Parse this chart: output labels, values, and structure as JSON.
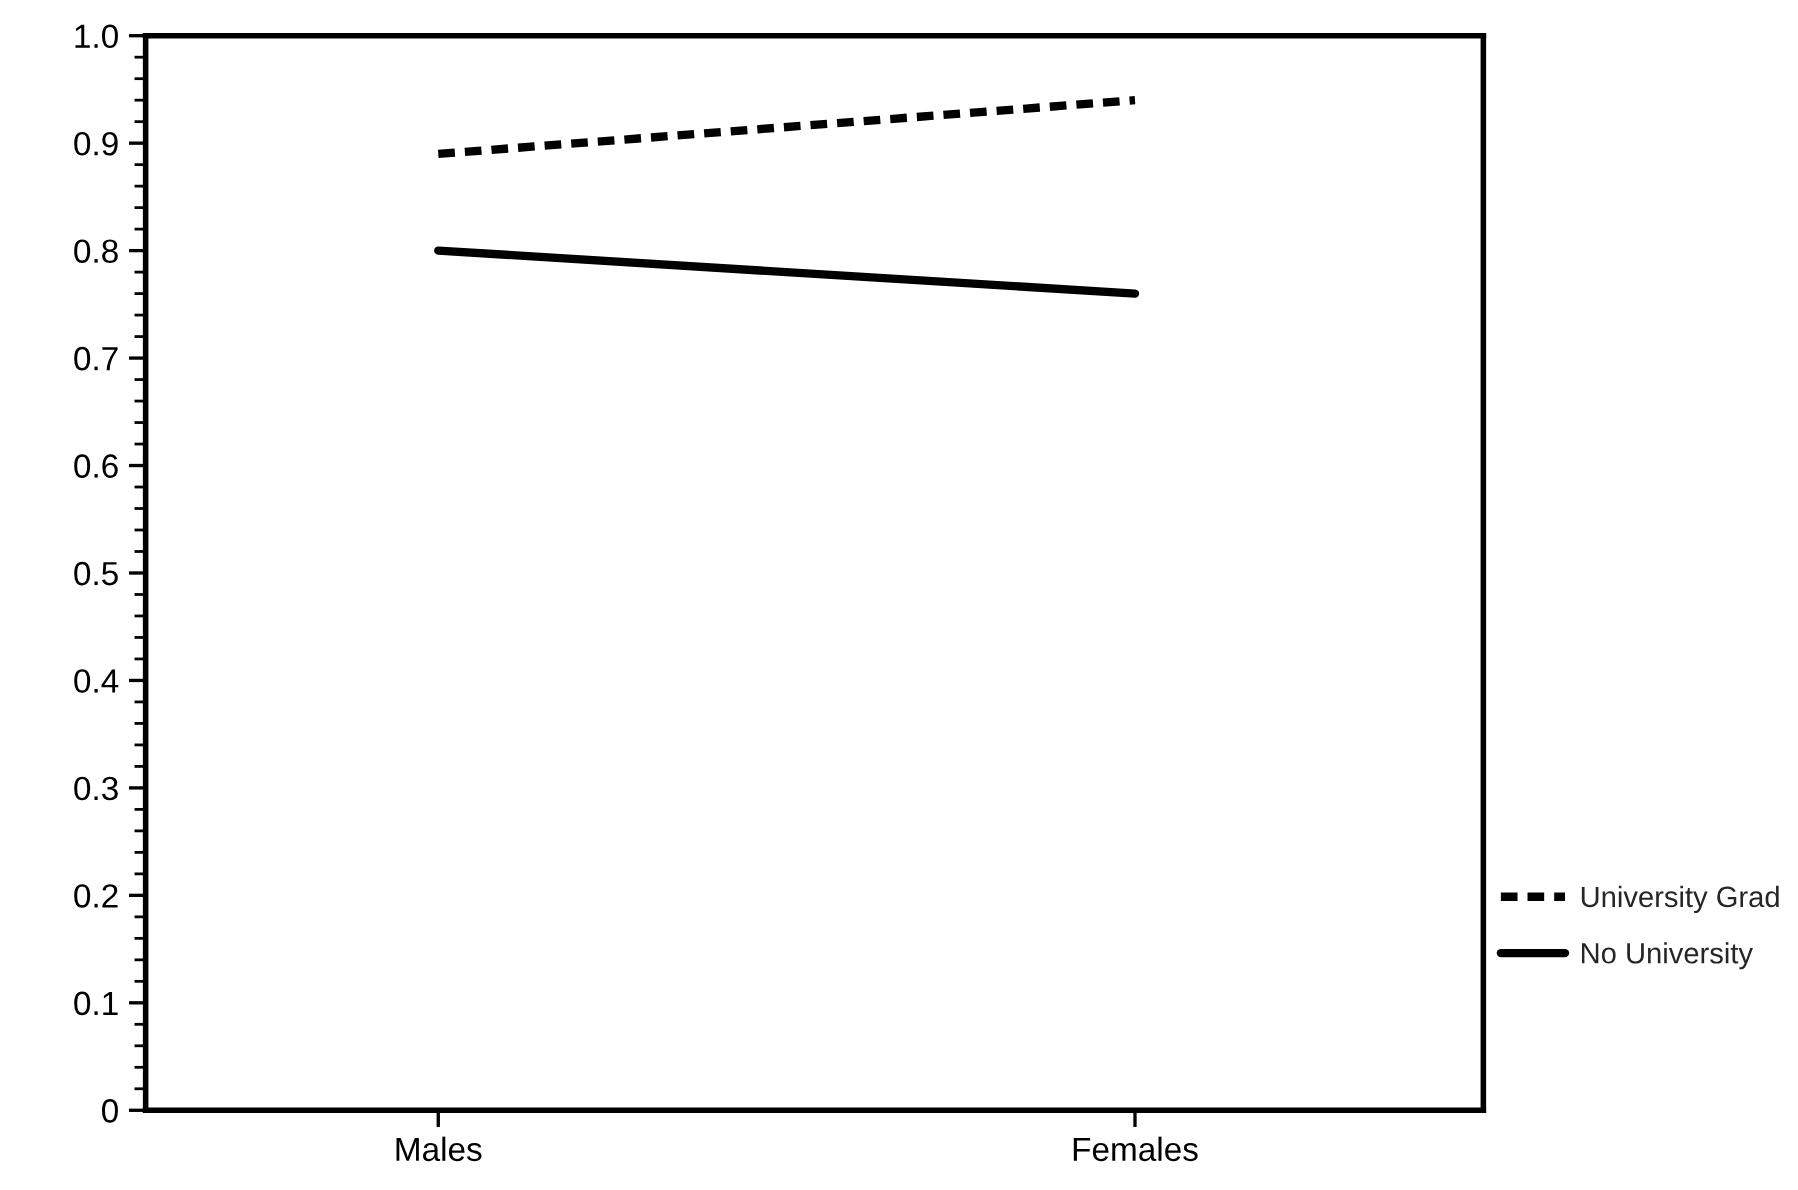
{
  "chart_data": {
    "type": "line",
    "categories": [
      "Males",
      "Females"
    ],
    "series": [
      {
        "name": "University Grad",
        "color": "#000000",
        "values": [
          0.89,
          0.94
        ],
        "line_style": "dashed"
      },
      {
        "name": "No University",
        "color": "#000000",
        "values": [
          0.8,
          0.76
        ],
        "line_style": "solid"
      }
    ],
    "ylim": [
      0,
      1
    ],
    "yticks": [
      0,
      0.1,
      0.2,
      0.3,
      0.4,
      0.5,
      0.6,
      0.7,
      0.8,
      0.9,
      {
        "value": 1,
        "label": "1.0"
      }
    ],
    "grid": false,
    "legend": "right",
    "marker": "none"
  }
}
